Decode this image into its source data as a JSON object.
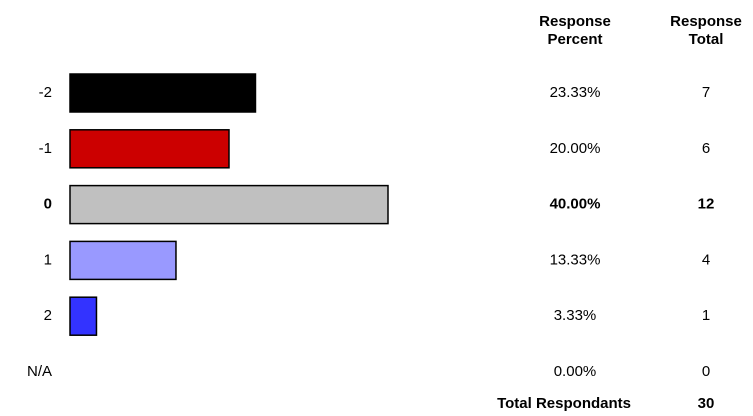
{
  "chart_data": {
    "type": "bar",
    "headers": [
      [
        "Response",
        "Percent"
      ],
      [
        "Response",
        "Total"
      ]
    ],
    "categories": [
      "-2",
      "-1",
      "0",
      "1",
      "2",
      "N/A"
    ],
    "values": [
      23.33,
      20.0,
      40.0,
      13.33,
      3.33,
      0.0
    ],
    "value_labels": [
      "23.33%",
      "20.00%",
      "40.00%",
      "13.33%",
      "3.33%",
      "0.00%"
    ],
    "totals": [
      7,
      6,
      12,
      4,
      1,
      0
    ],
    "colors": [
      "#000000",
      "#cc0000",
      "#c0c0c0",
      "#9999ff",
      "#3333ff",
      "#ffffff"
    ],
    "highlight": "0",
    "total_label": "Total Respondants",
    "total": 30
  }
}
